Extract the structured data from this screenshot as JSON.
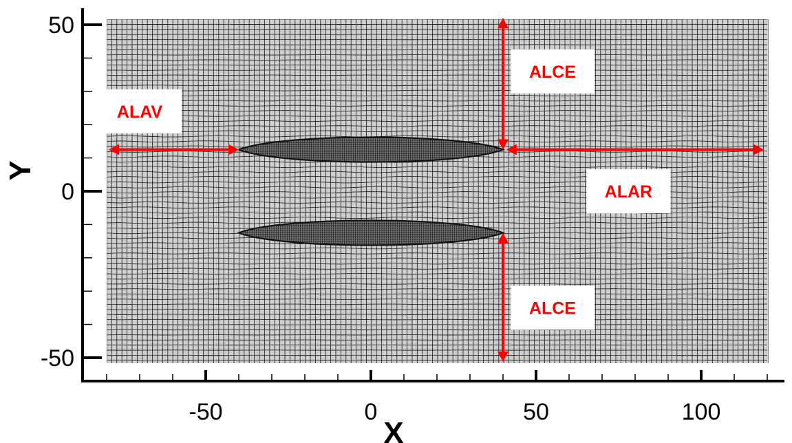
{
  "figure": {
    "x_axis_title": "X",
    "y_axis_title": "Y",
    "x_range": [
      -80,
      120
    ],
    "y_range": [
      -57,
      104
    ],
    "x_ticks": [
      {
        "value": -50,
        "label": "-50"
      },
      {
        "value": 0,
        "label": "0"
      },
      {
        "value": 50,
        "label": "50"
      },
      {
        "value": 100,
        "label": "100"
      }
    ],
    "y_ticks": [
      {
        "value": 50,
        "label": "50"
      },
      {
        "value": 0,
        "label": "0"
      },
      {
        "value": -50,
        "label": "-50"
      }
    ],
    "colors": {
      "mesh_background": "#cfcfcf",
      "mesh_lines": "#2a2a2a",
      "annotation": "#ff0000",
      "label_box": "#ffffff"
    },
    "airfoils": [
      {
        "name": "upper",
        "x_from": -40,
        "x_to": 40,
        "y_center": 12.5
      },
      {
        "name": "lower",
        "x_from": -40,
        "x_to": 40,
        "y_center": -12.5
      }
    ],
    "annotations": [
      {
        "id": "alav",
        "label": "ALAV",
        "direction": "horizontal",
        "from": [
          -80,
          12.5
        ],
        "to": [
          -40,
          12.5
        ],
        "label_at": [
          -70,
          24
        ]
      },
      {
        "id": "alce-top",
        "label": "ALCE",
        "direction": "vertical",
        "from": [
          40,
          52
        ],
        "to": [
          40,
          12.5
        ],
        "label_at": [
          55,
          36
        ]
      },
      {
        "id": "alar",
        "label": "ALAR",
        "direction": "horizontal",
        "from": [
          41,
          12.5
        ],
        "to": [
          119,
          12.5
        ],
        "label_at": [
          78,
          0
        ]
      },
      {
        "id": "alce-bottom",
        "label": "ALCE",
        "direction": "vertical",
        "from": [
          40,
          -12.5
        ],
        "to": [
          40,
          -51
        ],
        "label_at": [
          55,
          -35
        ]
      }
    ]
  }
}
